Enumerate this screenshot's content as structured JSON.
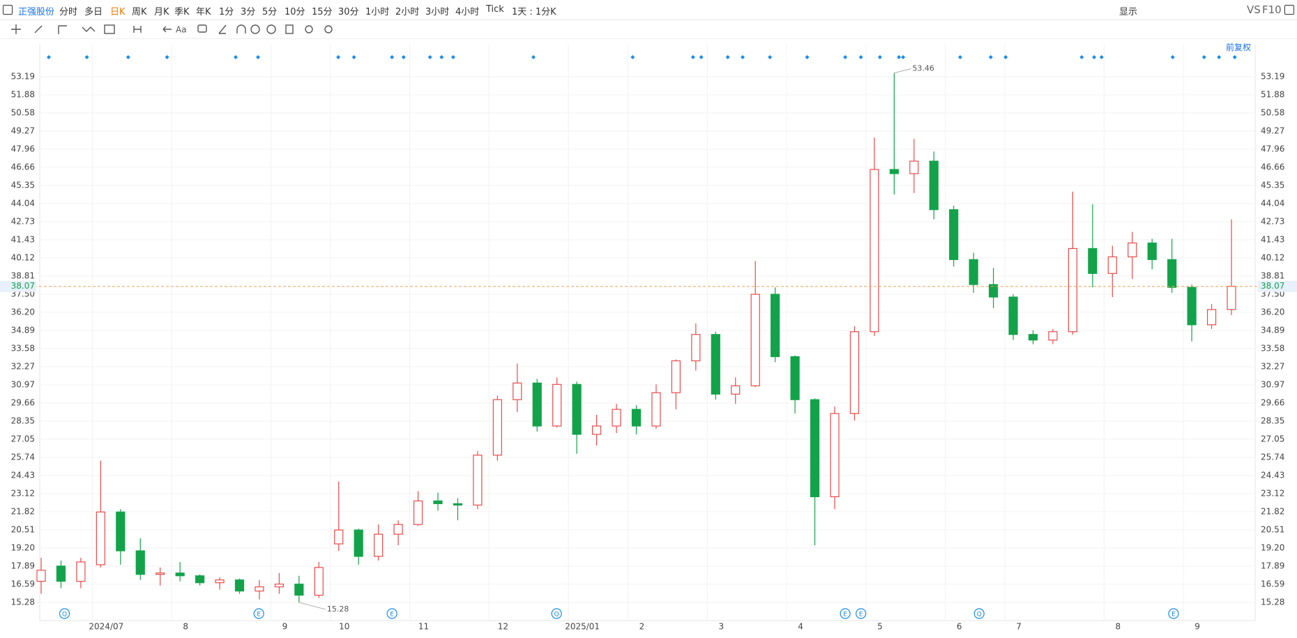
{
  "toolbar": {
    "stock": "正强股份",
    "periods": [
      "分时",
      "多日",
      "日K",
      "周K",
      "月K",
      "季K",
      "年K",
      "1分",
      "3分",
      "5分",
      "10分",
      "15分",
      "30分",
      "1小时",
      "2小时",
      "3小时",
      "4小时",
      "Tick",
      "1天 : 1分K"
    ],
    "active_period": 2,
    "display": "显示",
    "vs": "VS",
    "f10": "F10",
    "adjust": "前复权"
  },
  "chart_data": {
    "type": "candlestick",
    "categories": [
      null,
      null,
      null,
      "2024/07",
      null,
      null,
      null,
      "8",
      null,
      null,
      null,
      null,
      "9",
      null,
      null,
      "10",
      null,
      null,
      null,
      "11",
      null,
      null,
      null,
      "12",
      null,
      null,
      null,
      "2025/01",
      null,
      null,
      "2",
      null,
      null,
      null,
      "3",
      null,
      null,
      null,
      "4",
      null,
      null,
      null,
      "5",
      null,
      null,
      null,
      "6",
      null,
      null,
      "7",
      null,
      null,
      null,
      null,
      "8",
      null,
      null,
      null,
      "9",
      null,
      null
    ],
    "series": [
      {
        "open": [
          16.8,
          17.9,
          16.8,
          18.0,
          21.8,
          19.0,
          17.3,
          17.4,
          17.2,
          16.7,
          16.9,
          16.1,
          16.4,
          16.6,
          15.8,
          19.5,
          20.5,
          18.6,
          20.2,
          20.9,
          22.6,
          22.4,
          22.3,
          25.9,
          29.9,
          31.1,
          28.0,
          31.0,
          27.4,
          28.0,
          29.2,
          28.0,
          30.4,
          32.7,
          34.6,
          30.3,
          30.9,
          37.5,
          33.0,
          29.9,
          22.9,
          28.9,
          34.8,
          46.5,
          46.2,
          47.1,
          43.6,
          40.0,
          38.2,
          37.3,
          34.6,
          34.2,
          34.8,
          40.8,
          39.0,
          40.2,
          41.2,
          40.0,
          38.0,
          35.3,
          36.4
        ],
        "high": [
          18.5,
          18.3,
          18.5,
          25.5,
          22.0,
          19.9,
          17.8,
          18.2,
          17.3,
          17.1,
          17.0,
          16.9,
          17.4,
          17.2,
          18.2,
          24.0,
          20.6,
          20.9,
          21.2,
          23.3,
          23.2,
          22.8,
          26.2,
          30.2,
          32.5,
          31.4,
          31.5,
          31.2,
          28.8,
          29.6,
          29.5,
          31.0,
          32.8,
          35.4,
          34.8,
          31.5,
          39.9,
          38.0,
          33.1,
          30.0,
          29.4,
          35.2,
          48.8,
          53.46,
          48.7,
          47.8,
          43.9,
          40.5,
          39.4,
          37.5,
          34.9,
          35.0,
          44.9,
          44.0,
          41.0,
          42.0,
          41.5,
          41.5,
          38.2,
          36.8,
          42.9
        ],
        "low": [
          15.9,
          16.3,
          16.3,
          17.8,
          18.0,
          16.9,
          16.5,
          16.8,
          16.5,
          16.2,
          15.9,
          15.5,
          15.9,
          15.28,
          15.6,
          19.0,
          18.0,
          18.3,
          19.4,
          20.8,
          21.9,
          21.2,
          22.0,
          25.5,
          29.0,
          27.6,
          27.9,
          26.0,
          26.6,
          27.5,
          27.4,
          27.8,
          29.2,
          32.0,
          29.9,
          29.6,
          30.8,
          32.6,
          28.9,
          19.4,
          22.0,
          28.4,
          34.5,
          44.7,
          44.8,
          42.9,
          39.5,
          37.6,
          36.5,
          34.2,
          33.9,
          33.9,
          34.6,
          38.0,
          37.3,
          38.6,
          39.3,
          37.6,
          34.1,
          35.0,
          36.0
        ],
        "close": [
          17.6,
          16.8,
          18.2,
          21.8,
          19.0,
          17.3,
          17.4,
          17.2,
          16.7,
          16.9,
          16.1,
          16.4,
          16.6,
          15.8,
          17.8,
          20.5,
          18.6,
          20.2,
          20.9,
          22.6,
          22.4,
          22.3,
          25.9,
          29.9,
          31.1,
          28.0,
          31.0,
          27.4,
          28.0,
          29.2,
          28.0,
          30.4,
          32.7,
          34.6,
          30.3,
          30.9,
          37.5,
          33.0,
          29.9,
          22.9,
          28.9,
          34.8,
          46.5,
          46.2,
          47.1,
          43.6,
          40.0,
          38.2,
          37.3,
          34.6,
          34.2,
          34.8,
          40.8,
          39.0,
          40.2,
          41.2,
          40.0,
          38.0,
          35.3,
          36.4,
          38.07
        ]
      }
    ],
    "up_color": "#e84a4a",
    "down_color": "#12a34a",
    "last_price_color": "#f5a04a",
    "ylim": [
      13.97,
      55.0
    ],
    "yticks": [
      15.28,
      16.59,
      17.89,
      {
        "value": 19.2,
        "label": "19.20"
      },
      20.51,
      21.82,
      23.12,
      24.43,
      25.74,
      27.05,
      28.35,
      29.66,
      30.97,
      32.27,
      33.58,
      34.89,
      {
        "value": 36.2,
        "label": "36.20"
      },
      {
        "value": 37.5,
        "label": "37.50"
      },
      38.81,
      40.12,
      41.43,
      42.73,
      44.04,
      45.35,
      46.66,
      47.96,
      49.27,
      50.58,
      51.88,
      53.19
    ],
    "grid": true,
    "event_icons": [
      "Q",
      "E",
      "E",
      "Q",
      "E",
      "E",
      "Q",
      "E"
    ]
  }
}
